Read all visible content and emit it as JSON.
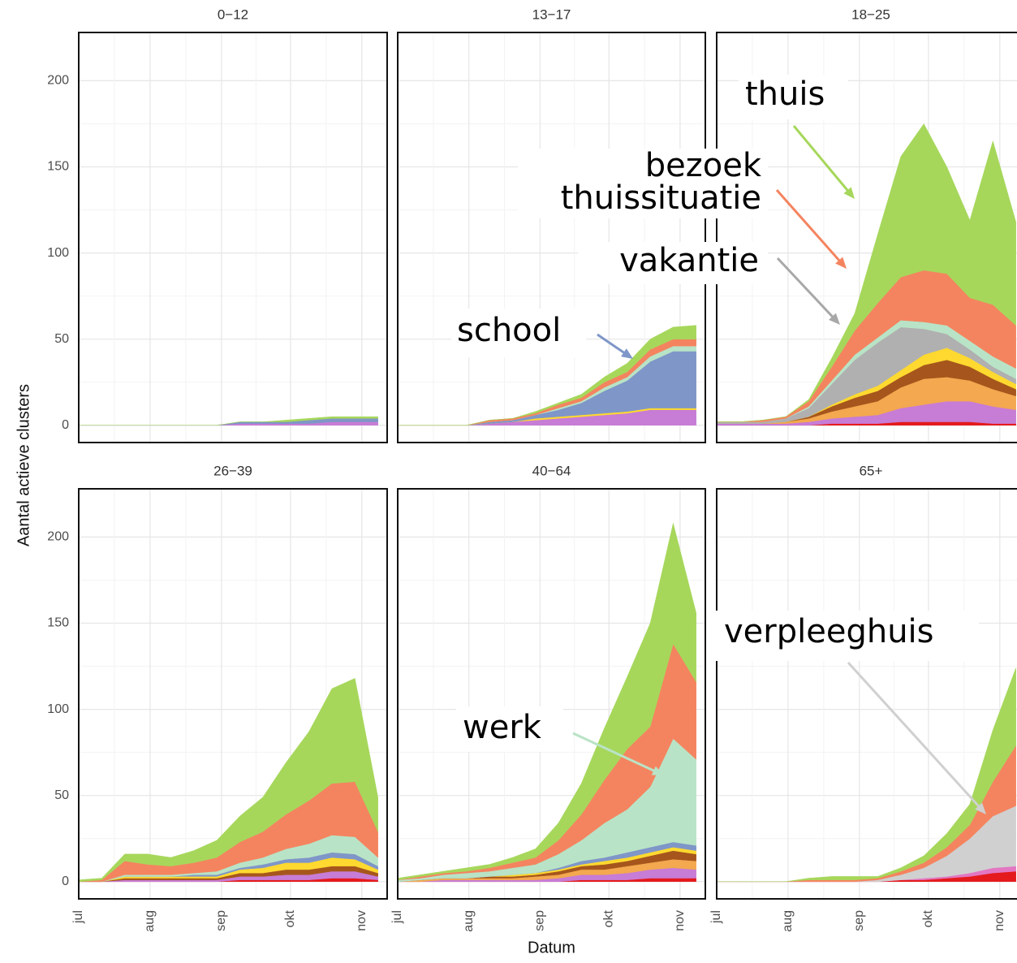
{
  "chart_data": [
    {
      "type": "area",
      "title": "0−12",
      "y_label": "Aantal actieve clusters",
      "x": [
        0,
        10,
        20,
        30,
        40,
        50,
        60,
        70,
        80,
        90,
        100,
        110,
        120,
        130
      ],
      "xlim": [
        0,
        134
      ],
      "xticks": [
        0,
        31,
        62,
        92,
        123
      ],
      "ylim": [
        -10,
        228
      ],
      "yticks": [
        0,
        50,
        100,
        150,
        200
      ],
      "grid": true,
      "series": [
        {
          "color": "#c77cd6",
          "values": [
            0,
            0,
            0,
            0,
            0,
            0,
            0,
            1,
            1,
            1,
            1,
            2,
            2,
            2
          ]
        },
        {
          "color": "#7f96c8",
          "values": [
            0,
            0,
            0,
            0,
            0,
            0,
            0,
            1,
            1,
            1,
            2,
            2,
            2,
            2
          ]
        },
        {
          "color": "#a6d75b",
          "values": [
            0,
            0,
            0,
            0,
            0,
            0,
            0,
            0,
            0,
            1,
            1,
            1,
            1,
            1
          ]
        }
      ],
      "annotations": []
    },
    {
      "type": "area",
      "title": "13−17",
      "x": [
        0,
        10,
        20,
        30,
        40,
        50,
        60,
        70,
        80,
        90,
        100,
        110,
        120,
        130
      ],
      "xlim": [
        0,
        134
      ],
      "xticks": [
        0,
        31,
        62,
        92,
        123
      ],
      "ylim": [
        -10,
        228
      ],
      "yticks": [
        0,
        50,
        100,
        150,
        200
      ],
      "grid": true,
      "series": [
        {
          "color": "#c77cd6",
          "values": [
            0,
            0,
            0,
            0,
            1,
            2,
            3,
            4,
            5,
            6,
            7,
            9,
            9,
            9
          ]
        },
        {
          "color": "#ffd92f",
          "values": [
            0,
            0,
            0,
            0,
            0,
            0,
            1,
            1,
            1,
            1,
            1,
            1,
            1,
            1
          ]
        },
        {
          "color": "#7f96c8",
          "values": [
            0,
            0,
            0,
            0,
            1,
            1,
            2,
            4,
            7,
            13,
            18,
            27,
            33,
            33
          ]
        },
        {
          "color": "#b9e3c6",
          "values": [
            0,
            0,
            0,
            0,
            0,
            0,
            0,
            1,
            1,
            2,
            2,
            3,
            3,
            3
          ]
        },
        {
          "color": "#f4845f",
          "values": [
            0,
            0,
            0,
            0,
            1,
            1,
            1,
            2,
            2,
            3,
            3,
            4,
            4,
            4
          ]
        },
        {
          "color": "#a6d75b",
          "values": [
            0,
            0,
            0,
            0,
            0,
            0,
            1,
            1,
            2,
            3,
            5,
            6,
            7,
            8
          ]
        }
      ],
      "annotations": [
        {
          "lines": [
            "school"
          ],
          "color": "#7f96c8"
        }
      ]
    },
    {
      "type": "area",
      "title": "18−25",
      "x": [
        0,
        10,
        20,
        30,
        40,
        50,
        60,
        70,
        80,
        90,
        100,
        110,
        120,
        130
      ],
      "xlim": [
        0,
        134
      ],
      "xticks": [
        0,
        31,
        62,
        92,
        123
      ],
      "ylim": [
        -10,
        228
      ],
      "yticks": [
        0,
        50,
        100,
        150,
        200
      ],
      "grid": true,
      "series": [
        {
          "color": "#e41a1c",
          "values": [
            0,
            0,
            0,
            0,
            0,
            1,
            1,
            1,
            2,
            2,
            2,
            2,
            1,
            1
          ]
        },
        {
          "color": "#c77cd6",
          "values": [
            1,
            1,
            1,
            1,
            2,
            3,
            4,
            5,
            8,
            10,
            12,
            12,
            10,
            8
          ]
        },
        {
          "color": "#f4a84f",
          "values": [
            0,
            0,
            0,
            1,
            2,
            4,
            6,
            8,
            12,
            15,
            14,
            12,
            10,
            8
          ]
        },
        {
          "color": "#a6561c",
          "values": [
            0,
            0,
            0,
            0,
            1,
            3,
            5,
            6,
            6,
            8,
            10,
            8,
            6,
            4
          ]
        },
        {
          "color": "#ffd92f",
          "values": [
            0,
            0,
            0,
            0,
            0,
            1,
            2,
            3,
            4,
            6,
            7,
            5,
            4,
            3
          ]
        },
        {
          "color": "#b0b0b0",
          "values": [
            1,
            1,
            1,
            2,
            5,
            12,
            20,
            25,
            25,
            15,
            8,
            5,
            3,
            3
          ]
        },
        {
          "color": "#b9e3c6",
          "values": [
            0,
            0,
            0,
            0,
            1,
            2,
            3,
            3,
            4,
            4,
            5,
            5,
            6,
            6
          ]
        },
        {
          "color": "#f4845f",
          "values": [
            0,
            0,
            1,
            1,
            3,
            8,
            14,
            20,
            25,
            30,
            30,
            25,
            30,
            25
          ]
        },
        {
          "color": "#a6d75b",
          "values": [
            0,
            0,
            0,
            0,
            1,
            5,
            10,
            40,
            70,
            85,
            62,
            45,
            95,
            60
          ]
        }
      ],
      "annotations": [
        {
          "lines": [
            "thuis"
          ],
          "color": "#a6d75b"
        },
        {
          "lines": [
            "bezoek",
            "thuissituatie"
          ],
          "color": "#f4845f"
        },
        {
          "lines": [
            "vakantie"
          ],
          "color": "#a8a8a8"
        }
      ]
    },
    {
      "type": "area",
      "title": "26−39",
      "x": [
        0,
        10,
        20,
        30,
        40,
        50,
        60,
        70,
        80,
        90,
        100,
        110,
        120,
        130
      ],
      "xlim": [
        0,
        134
      ],
      "xticks": [
        {
          "value": 0,
          "label": "jul"
        },
        {
          "value": 31,
          "label": "aug"
        },
        {
          "value": 62,
          "label": "sep"
        },
        {
          "value": 92,
          "label": "okt"
        },
        {
          "value": 123,
          "label": "nov"
        }
      ],
      "ylim": [
        -10,
        228
      ],
      "yticks": [
        0,
        50,
        100,
        150,
        200
      ],
      "grid": true,
      "series": [
        {
          "color": "#e41a1c",
          "values": [
            0,
            0,
            0,
            0,
            0,
            0,
            0,
            1,
            1,
            1,
            1,
            2,
            2,
            1
          ]
        },
        {
          "color": "#c77cd6",
          "values": [
            0,
            0,
            1,
            1,
            1,
            1,
            1,
            2,
            2,
            3,
            3,
            4,
            4,
            2
          ]
        },
        {
          "color": "#a6561c",
          "values": [
            0,
            0,
            1,
            1,
            1,
            1,
            1,
            2,
            2,
            3,
            3,
            3,
            3,
            2
          ]
        },
        {
          "color": "#ffd92f",
          "values": [
            0,
            0,
            1,
            1,
            1,
            1,
            1,
            2,
            3,
            4,
            4,
            5,
            4,
            2
          ]
        },
        {
          "color": "#7f96c8",
          "values": [
            0,
            0,
            0,
            0,
            0,
            1,
            1,
            1,
            2,
            2,
            3,
            3,
            3,
            2
          ]
        },
        {
          "color": "#b9e3c6",
          "values": [
            0,
            0,
            1,
            1,
            1,
            1,
            2,
            3,
            4,
            6,
            8,
            10,
            10,
            5
          ]
        },
        {
          "color": "#f4845f",
          "values": [
            0,
            1,
            8,
            6,
            5,
            6,
            8,
            12,
            15,
            20,
            25,
            30,
            32,
            15
          ]
        },
        {
          "color": "#a6d75b",
          "values": [
            1,
            1,
            4,
            6,
            5,
            7,
            10,
            15,
            20,
            30,
            40,
            55,
            60,
            20
          ]
        }
      ],
      "annotations": []
    },
    {
      "type": "area",
      "title": "40−64",
      "x_label": "Datum",
      "x": [
        0,
        10,
        20,
        30,
        40,
        50,
        60,
        70,
        80,
        90,
        100,
        110,
        120,
        130
      ],
      "xlim": [
        0,
        134
      ],
      "xticks": [
        {
          "value": 0,
          "label": "jul"
        },
        {
          "value": 31,
          "label": "aug"
        },
        {
          "value": 62,
          "label": "sep"
        },
        {
          "value": 92,
          "label": "okt"
        },
        {
          "value": 123,
          "label": "nov"
        }
      ],
      "ylim": [
        -10,
        228
      ],
      "yticks": [
        0,
        50,
        100,
        150,
        200
      ],
      "grid": true,
      "series": [
        {
          "color": "#e41a1c",
          "values": [
            0,
            0,
            0,
            0,
            0,
            0,
            0,
            0,
            1,
            1,
            1,
            2,
            2,
            2
          ]
        },
        {
          "color": "#c77cd6",
          "values": [
            0,
            0,
            1,
            1,
            1,
            1,
            1,
            2,
            3,
            3,
            4,
            5,
            6,
            5
          ]
        },
        {
          "color": "#f4a84f",
          "values": [
            0,
            1,
            1,
            1,
            1,
            1,
            2,
            2,
            3,
            3,
            4,
            4,
            5,
            5
          ]
        },
        {
          "color": "#a6561c",
          "values": [
            0,
            0,
            0,
            0,
            1,
            1,
            1,
            2,
            2,
            3,
            3,
            4,
            5,
            4
          ]
        },
        {
          "color": "#ffd92f",
          "values": [
            0,
            0,
            0,
            0,
            0,
            1,
            1,
            1,
            1,
            2,
            2,
            2,
            2,
            2
          ]
        },
        {
          "color": "#7f96c8",
          "values": [
            0,
            0,
            0,
            0,
            0,
            0,
            0,
            1,
            2,
            2,
            3,
            3,
            3,
            3
          ]
        },
        {
          "color": "#b9e3c6",
          "values": [
            1,
            1,
            2,
            3,
            3,
            4,
            5,
            8,
            12,
            20,
            25,
            35,
            60,
            50
          ]
        },
        {
          "color": "#f4845f",
          "values": [
            0,
            1,
            1,
            1,
            2,
            3,
            4,
            8,
            15,
            25,
            35,
            35,
            55,
            45
          ]
        },
        {
          "color": "#a6d75b",
          "values": [
            1,
            1,
            1,
            2,
            2,
            3,
            5,
            10,
            18,
            30,
            42,
            60,
            70,
            40
          ]
        }
      ],
      "annotations": [
        {
          "lines": [
            "werk"
          ],
          "color": "#b9e3c6"
        }
      ]
    },
    {
      "type": "area",
      "title": "65+",
      "x": [
        0,
        10,
        20,
        30,
        40,
        50,
        60,
        70,
        80,
        90,
        100,
        110,
        120,
        130
      ],
      "xlim": [
        0,
        134
      ],
      "xticks": [
        {
          "value": 0,
          "label": "jul"
        },
        {
          "value": 31,
          "label": "aug"
        },
        {
          "value": 62,
          "label": "sep"
        },
        {
          "value": 92,
          "label": "okt"
        },
        {
          "value": 123,
          "label": "nov"
        }
      ],
      "ylim": [
        -10,
        228
      ],
      "yticks": [
        0,
        50,
        100,
        150,
        200
      ],
      "grid": true,
      "series": [
        {
          "color": "#e41a1c",
          "values": [
            0,
            0,
            0,
            0,
            0,
            0,
            0,
            0,
            1,
            1,
            2,
            3,
            5,
            6
          ]
        },
        {
          "color": "#e377c2",
          "values": [
            0,
            0,
            0,
            0,
            0,
            0,
            0,
            0,
            0,
            1,
            1,
            2,
            3,
            3
          ]
        },
        {
          "color": "#d0d0d0",
          "values": [
            0,
            0,
            0,
            0,
            0,
            0,
            0,
            1,
            3,
            6,
            12,
            20,
            30,
            35
          ]
        },
        {
          "color": "#f4845f",
          "values": [
            0,
            0,
            0,
            0,
            1,
            1,
            1,
            1,
            2,
            3,
            5,
            8,
            20,
            35
          ]
        },
        {
          "color": "#a6d75b",
          "values": [
            0,
            0,
            0,
            0,
            1,
            2,
            2,
            1,
            2,
            4,
            8,
            12,
            30,
            45
          ]
        }
      ],
      "annotations": [
        {
          "lines": [
            "verpleeghuis"
          ],
          "color": "#d0d0d0"
        }
      ]
    }
  ]
}
